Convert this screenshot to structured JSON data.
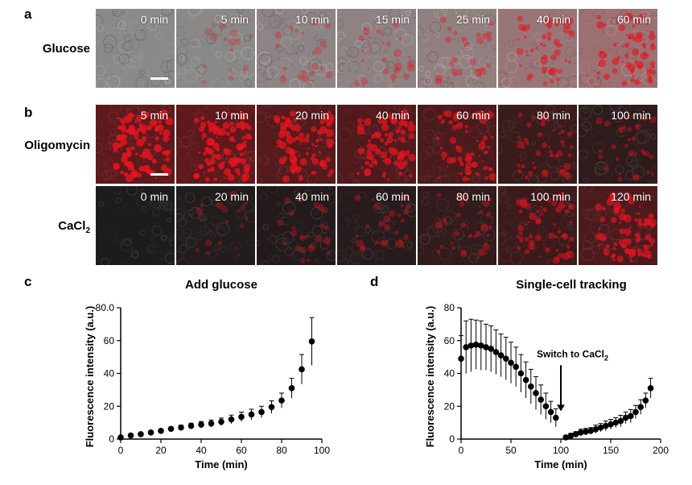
{
  "panels": {
    "a": {
      "letter": "a",
      "row_label": "Glucose",
      "tiles": [
        {
          "time": "0 min",
          "red": 0.0
        },
        {
          "time": "5 min",
          "red": 0.03
        },
        {
          "time": "10 min",
          "red": 0.12
        },
        {
          "time": "15 min",
          "red": 0.18
        },
        {
          "time": "25 min",
          "red": 0.25
        },
        {
          "time": "40 min",
          "red": 0.45
        },
        {
          "time": "60 min",
          "red": 0.6
        }
      ]
    },
    "b": {
      "letter": "b",
      "rows": [
        {
          "label": "Oligomycin",
          "tiles": [
            {
              "time": "5 min",
              "red": 0.95
            },
            {
              "time": "10 min",
              "red": 0.9
            },
            {
              "time": "20 min",
              "red": 0.8
            },
            {
              "time": "40 min",
              "red": 0.75
            },
            {
              "time": "60 min",
              "red": 0.65
            },
            {
              "time": "80 min",
              "red": 0.4
            },
            {
              "time": "100 min",
              "red": 0.25
            }
          ]
        },
        {
          "label": "CaCl",
          "label_sub": "2",
          "tiles": [
            {
              "time": "0 min",
              "red": 0.0
            },
            {
              "time": "20 min",
              "red": 0.08
            },
            {
              "time": "40 min",
              "red": 0.12
            },
            {
              "time": "60 min",
              "red": 0.18
            },
            {
              "time": "80 min",
              "red": 0.28
            },
            {
              "time": "100 min",
              "red": 0.45
            },
            {
              "time": "120 min",
              "red": 0.7
            }
          ]
        }
      ]
    },
    "c": {
      "letter": "c"
    },
    "d": {
      "letter": "d"
    }
  },
  "colors": {
    "fluorescence": "#e8141e",
    "background": "#ffffff",
    "text": "#000000"
  },
  "chart_data": [
    {
      "type": "scatter",
      "title": "Add glucose",
      "xlabel": "Time (min)",
      "ylabel": "Fluorescence intensity (a.u.)",
      "xlim": [
        0,
        100
      ],
      "ylim": [
        0,
        80
      ],
      "xticks": [
        0,
        20,
        40,
        60,
        80,
        100
      ],
      "yticks": [
        0,
        20,
        40,
        60,
        80
      ],
      "ytick_labels": [
        "0",
        "20",
        "40",
        "60",
        "80.0"
      ],
      "series": [
        {
          "x": [
            0,
            5,
            10,
            15,
            20,
            25,
            30,
            35,
            40,
            45,
            50,
            55,
            60,
            65,
            70,
            75,
            80,
            85,
            90,
            95
          ],
          "y": [
            1.0,
            2.2,
            3.0,
            4.0,
            5.0,
            6.2,
            7.0,
            8.0,
            8.8,
            9.5,
            10.5,
            12.0,
            13.5,
            15.0,
            16.5,
            19.5,
            23.5,
            31.0,
            42.5,
            59.5
          ],
          "err": [
            0.3,
            0.5,
            0.6,
            0.8,
            1.0,
            1.2,
            1.5,
            1.7,
            1.9,
            2.1,
            2.3,
            2.6,
            2.9,
            3.2,
            3.5,
            3.8,
            4.5,
            6.0,
            9.0,
            14.5
          ]
        }
      ]
    },
    {
      "type": "scatter",
      "title": "Single-cell tracking",
      "xlabel": "Time (min)",
      "ylabel": "Fluorescence intensity (a.u.)",
      "xlim": [
        0,
        200
      ],
      "ylim": [
        0,
        80
      ],
      "xticks": [
        0,
        50,
        100,
        150,
        200
      ],
      "yticks": [
        0,
        20,
        40,
        60,
        80
      ],
      "ytick_labels": [
        "0",
        "20",
        "40",
        "60",
        "80"
      ],
      "annotation": {
        "text": "Switch to CaCl",
        "sub": "2",
        "x": 100,
        "y_tip": 17,
        "y_tail": 45
      },
      "series": [
        {
          "x": [
            0,
            5,
            10,
            15,
            20,
            25,
            30,
            35,
            40,
            45,
            50,
            55,
            60,
            65,
            70,
            75,
            80,
            85,
            90,
            95,
            105,
            110,
            115,
            120,
            125,
            130,
            135,
            140,
            145,
            150,
            155,
            160,
            165,
            170,
            175,
            180,
            185,
            190
          ],
          "y": [
            49,
            56,
            57,
            57.5,
            57,
            56,
            55,
            53,
            51,
            49,
            46.5,
            44,
            40,
            36,
            32,
            28,
            24,
            20,
            16.5,
            13,
            1,
            2,
            3,
            4,
            4.5,
            5,
            6,
            7,
            8,
            9,
            10,
            11,
            13,
            14,
            16.5,
            19.5,
            23.5,
            31
          ],
          "err": [
            14,
            16,
            16,
            15,
            15,
            14,
            14,
            13.5,
            13,
            13,
            12.5,
            12,
            11.5,
            11,
            10.5,
            10,
            9,
            8,
            6.5,
            5.5,
            1,
            1.5,
            1.5,
            2,
            2,
            2,
            2.5,
            2.5,
            3,
            3,
            3,
            3.5,
            3.5,
            4,
            4,
            4.5,
            4.5,
            6
          ]
        }
      ]
    }
  ]
}
